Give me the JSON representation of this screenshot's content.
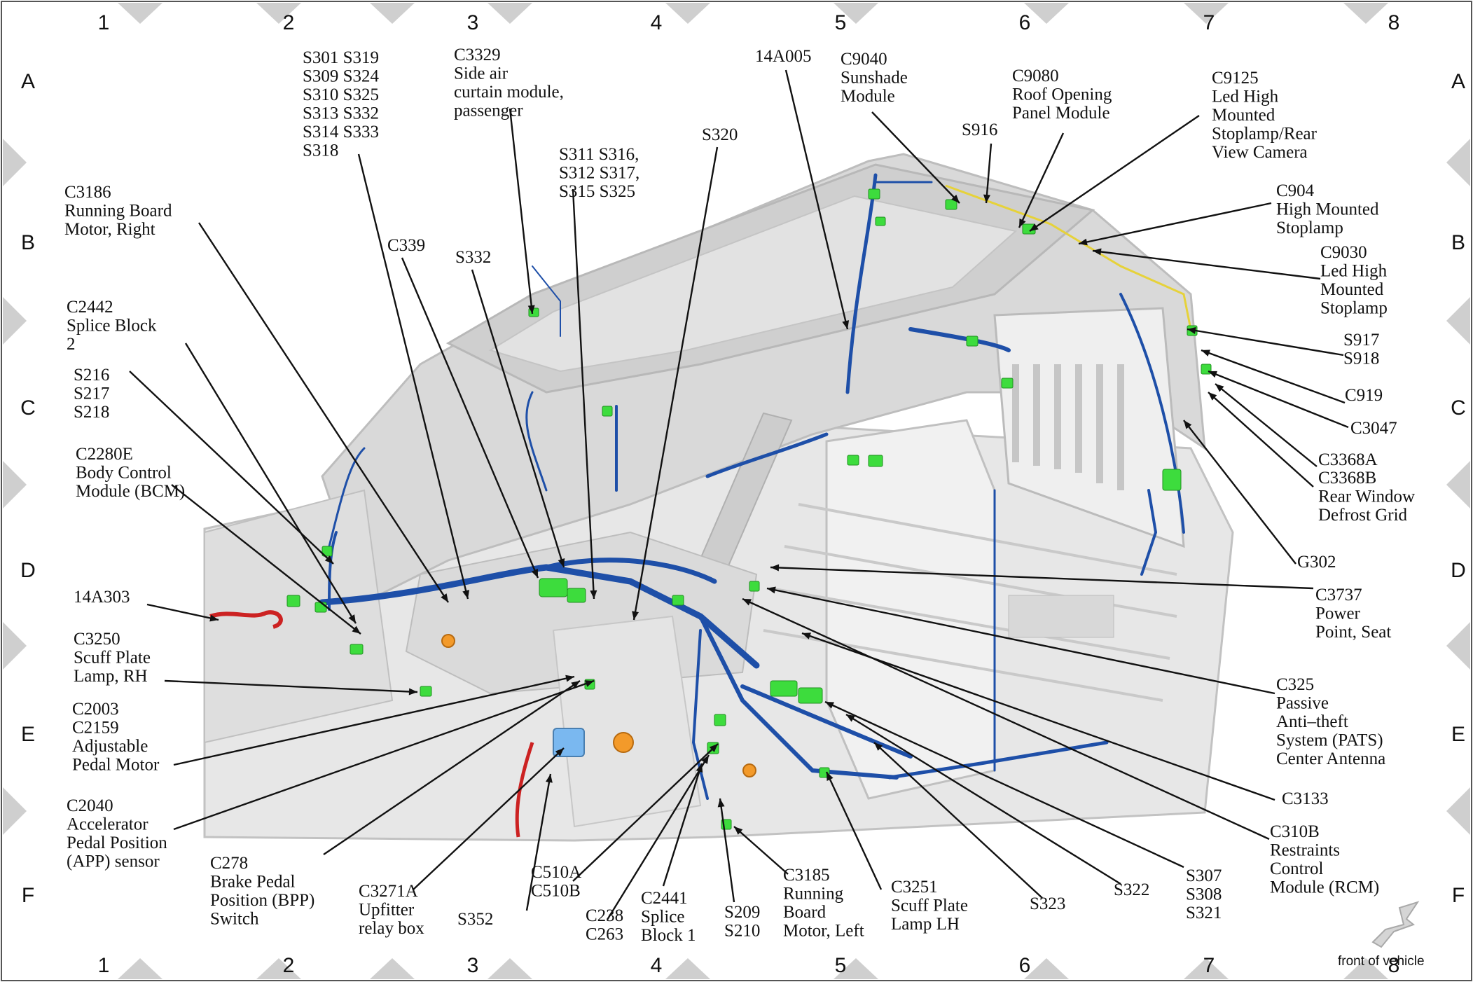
{
  "grid": {
    "columns": [
      "1",
      "2",
      "3",
      "4",
      "5",
      "6",
      "7",
      "8"
    ],
    "rows": [
      "A",
      "B",
      "C",
      "D",
      "E",
      "F"
    ]
  },
  "colors": {
    "wire_harness": "#1e4fa8",
    "connector": "#3ddc3d",
    "body_panel": "#d8d8d8",
    "accent_red": "#cc2222",
    "accent_orange": "#f39a2a",
    "accent_blue": "#7ab8f0"
  },
  "labels": [
    {
      "id": "s301",
      "lines": [
        "S301  S319",
        "S309  S324",
        "S310  S325",
        "S313  S332",
        "S314  S333",
        "S318"
      ]
    },
    {
      "id": "c3329",
      "lines": [
        "C3329",
        "Side air",
        "curtain module,",
        "passenger"
      ]
    },
    {
      "id": "14a005",
      "lines": [
        "14A005"
      ]
    },
    {
      "id": "c9040",
      "lines": [
        "C9040",
        "Sunshade",
        "Module"
      ]
    },
    {
      "id": "c9080",
      "lines": [
        "C9080",
        "Roof Opening",
        "Panel Module"
      ]
    },
    {
      "id": "c9125",
      "lines": [
        "C9125",
        "Led High",
        "Mounted",
        "Stoplamp/Rear",
        "View Camera"
      ]
    },
    {
      "id": "s916",
      "lines": [
        "S916"
      ]
    },
    {
      "id": "s320",
      "lines": [
        "S320"
      ]
    },
    {
      "id": "s311",
      "lines": [
        "S311  S316,",
        "S312  S317,",
        "S315  S325"
      ]
    },
    {
      "id": "c3186",
      "lines": [
        "C3186",
        "Running Board",
        "Motor, Right"
      ]
    },
    {
      "id": "c904",
      "lines": [
        "C904",
        "High Mounted",
        "Stoplamp"
      ]
    },
    {
      "id": "c339",
      "lines": [
        "C339"
      ]
    },
    {
      "id": "s332",
      "lines": [
        "S332"
      ]
    },
    {
      "id": "c9030",
      "lines": [
        "C9030",
        "Led High",
        "Mounted",
        "Stoplamp"
      ]
    },
    {
      "id": "c2442",
      "lines": [
        "C2442",
        "Splice Block",
        "2"
      ]
    },
    {
      "id": "s917",
      "lines": [
        "S917",
        "S918"
      ]
    },
    {
      "id": "s216",
      "lines": [
        "S216",
        "S217",
        "S218"
      ]
    },
    {
      "id": "c919",
      "lines": [
        "C919"
      ]
    },
    {
      "id": "c3047",
      "lines": [
        "C3047"
      ]
    },
    {
      "id": "c2280e",
      "lines": [
        "C2280E",
        "Body Control",
        "Module (BCM)"
      ]
    },
    {
      "id": "c3368a",
      "lines": [
        "C3368A"
      ]
    },
    {
      "id": "c3368b",
      "lines": [
        "C3368B",
        "Rear Window",
        "Defrost Grid"
      ]
    },
    {
      "id": "g302",
      "lines": [
        "G302"
      ]
    },
    {
      "id": "14a303",
      "lines": [
        "14A303"
      ]
    },
    {
      "id": "c3737",
      "lines": [
        "C3737",
        "Power",
        "Point, Seat"
      ]
    },
    {
      "id": "c3250",
      "lines": [
        "C3250",
        "Scuff Plate",
        "Lamp, RH"
      ]
    },
    {
      "id": "c325",
      "lines": [
        "C325",
        "Passive",
        "Anti–theft",
        "System (PATS)",
        "Center Antenna"
      ]
    },
    {
      "id": "c2003",
      "lines": [
        "C2003",
        "C2159",
        "Adjustable",
        "Pedal Motor"
      ]
    },
    {
      "id": "c3133",
      "lines": [
        "C3133"
      ]
    },
    {
      "id": "c2040",
      "lines": [
        "C2040",
        "Accelerator",
        "Pedal Position",
        "(APP) sensor"
      ]
    },
    {
      "id": "c310b",
      "lines": [
        "C310B",
        "Restraints",
        "Control",
        "Module (RCM)"
      ]
    },
    {
      "id": "c278",
      "lines": [
        "C278",
        "Brake Pedal",
        "Position (BPP)",
        "Switch"
      ]
    },
    {
      "id": "c3271a",
      "lines": [
        "C3271A",
        "Upfitter",
        "relay box"
      ]
    },
    {
      "id": "s352",
      "lines": [
        "S352"
      ]
    },
    {
      "id": "c510a",
      "lines": [
        "C510A",
        "C510B"
      ]
    },
    {
      "id": "c238",
      "lines": [
        "C238",
        "C263"
      ]
    },
    {
      "id": "c2441",
      "lines": [
        "C2441",
        "Splice",
        "Block 1"
      ]
    },
    {
      "id": "s209",
      "lines": [
        "S209",
        "S210"
      ]
    },
    {
      "id": "c3185",
      "lines": [
        "C3185",
        "Running",
        "Board",
        "Motor, Left"
      ]
    },
    {
      "id": "c3251",
      "lines": [
        "C3251",
        "Scuff Plate",
        "Lamp LH"
      ]
    },
    {
      "id": "s323",
      "lines": [
        "S323"
      ]
    },
    {
      "id": "s322",
      "lines": [
        "S322"
      ]
    },
    {
      "id": "s307",
      "lines": [
        "S307",
        "S308",
        "S321"
      ]
    }
  ],
  "orientation": {
    "text": "front of vehicle"
  }
}
